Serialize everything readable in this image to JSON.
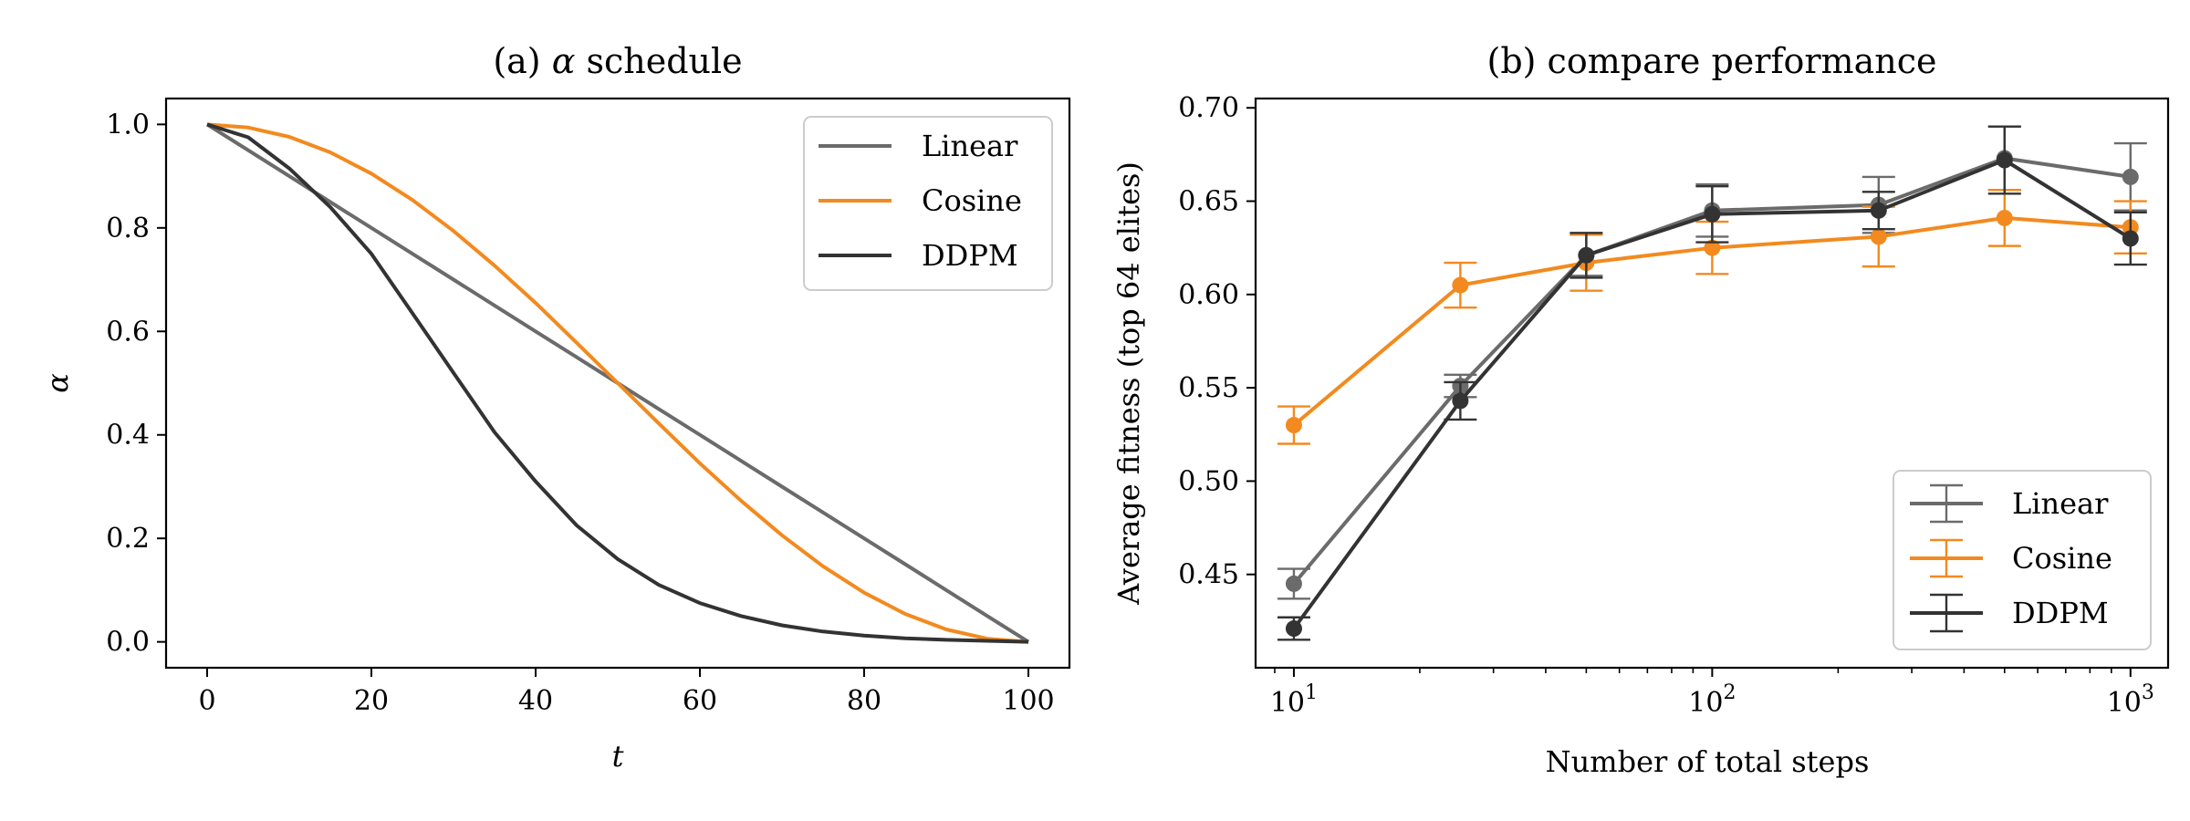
{
  "chart_data": [
    {
      "type": "line",
      "title_prefix": "(a) ",
      "title_symbol": "α",
      "title_suffix": " schedule",
      "xlabel": "t",
      "ylabel": "α",
      "xlim": [
        -5,
        105
      ],
      "ylim": [
        -0.05,
        1.05
      ],
      "xticks": [
        0,
        20,
        40,
        60,
        80,
        100
      ],
      "xtick_labels": [
        "0",
        "20",
        "40",
        "60",
        "80",
        "100"
      ],
      "yticks": [
        0.0,
        0.2,
        0.4,
        0.6,
        0.8,
        1.0
      ],
      "ytick_labels": [
        "0.0",
        "0.2",
        "0.4",
        "0.6",
        "0.8",
        "1.0"
      ],
      "legend": "top-right",
      "grid": false,
      "x": [
        0,
        5,
        10,
        15,
        20,
        25,
        30,
        35,
        40,
        45,
        50,
        55,
        60,
        65,
        70,
        75,
        80,
        85,
        90,
        95,
        100
      ],
      "series": [
        {
          "name": "Linear",
          "color": "#6b6b6b",
          "values": [
            1.0,
            0.95,
            0.9,
            0.85,
            0.8,
            0.75,
            0.7,
            0.65,
            0.6,
            0.55,
            0.5,
            0.45,
            0.4,
            0.35,
            0.3,
            0.25,
            0.2,
            0.15,
            0.1,
            0.05,
            0.0
          ]
        },
        {
          "name": "Cosine",
          "color": "#f28a1f",
          "values": [
            1.0,
            0.994,
            0.976,
            0.946,
            0.905,
            0.854,
            0.794,
            0.727,
            0.655,
            0.578,
            0.5,
            0.422,
            0.345,
            0.273,
            0.206,
            0.146,
            0.095,
            0.054,
            0.024,
            0.006,
            0.0
          ]
        },
        {
          "name": "DDPM",
          "color": "#333333",
          "values": [
            1.0,
            0.975,
            0.915,
            0.84,
            0.75,
            0.635,
            0.52,
            0.405,
            0.31,
            0.225,
            0.16,
            0.11,
            0.075,
            0.05,
            0.032,
            0.02,
            0.012,
            0.007,
            0.004,
            0.002,
            0.0
          ]
        }
      ]
    },
    {
      "type": "line",
      "title": "(b) compare performance",
      "xlabel": "Number of total steps",
      "ylabel": "Average fitness (top 64 elites)",
      "xscale": "log",
      "xlim": [
        8.1,
        1230
      ],
      "ylim": [
        0.4,
        0.705
      ],
      "xticks": [
        10,
        100,
        1000
      ],
      "xtick_base": [
        "10",
        "10",
        "10"
      ],
      "xtick_exp": [
        "1",
        "2",
        "3"
      ],
      "yticks": [
        0.45,
        0.5,
        0.55,
        0.6,
        0.65,
        0.7
      ],
      "ytick_labels": [
        "0.45",
        "0.50",
        "0.55",
        "0.60",
        "0.65",
        "0.70"
      ],
      "legend": "bottom-right",
      "grid": false,
      "error_bars": true,
      "x": [
        10,
        25,
        50,
        100,
        250,
        500,
        1000
      ],
      "series": [
        {
          "name": "Linear",
          "color": "#6b6b6b",
          "values": [
            0.445,
            0.551,
            0.621,
            0.645,
            0.648,
            0.673,
            0.663
          ],
          "errors": [
            0.008,
            0.006,
            0.011,
            0.014,
            0.015,
            0.017,
            0.018
          ]
        },
        {
          "name": "Cosine",
          "color": "#f28a1f",
          "values": [
            0.53,
            0.605,
            0.617,
            0.625,
            0.631,
            0.641,
            0.636
          ],
          "errors": [
            0.01,
            0.012,
            0.015,
            0.014,
            0.016,
            0.015,
            0.014
          ]
        },
        {
          "name": "DDPM",
          "color": "#333333",
          "values": [
            0.421,
            0.543,
            0.621,
            0.643,
            0.645,
            0.672,
            0.63
          ],
          "errors": [
            0.006,
            0.01,
            0.012,
            0.015,
            0.01,
            0.018,
            0.014
          ]
        }
      ]
    }
  ]
}
